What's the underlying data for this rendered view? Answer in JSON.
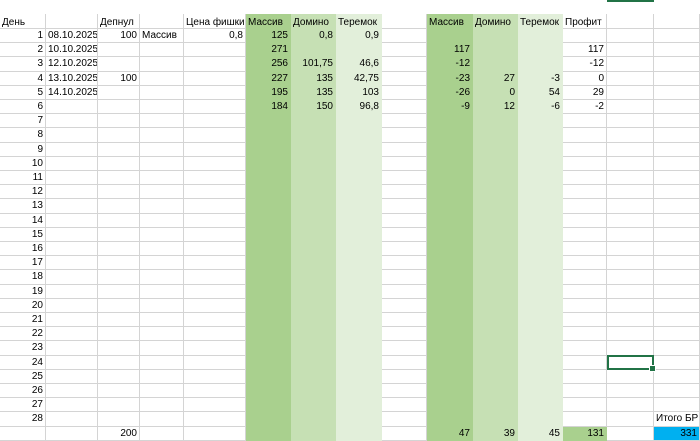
{
  "headers": {
    "den": "День",
    "depnul": "Депнул",
    "cena_fishki": "Цена фишки",
    "massiv": "Массив",
    "domino": "Домино",
    "teremok": "Теремок",
    "massiv2": "Массив",
    "domino2": "Домино",
    "teremok2": "Теремок",
    "profit": "Профит"
  },
  "rows": [
    {
      "n": "1",
      "date": "08.10.2025.",
      "dep": "100",
      "name": "Массив",
      "price": "0,8",
      "m": "125",
      "d": "0,8",
      "t": "0,9",
      "m2": "",
      "d2": "",
      "t2": "",
      "p": ""
    },
    {
      "n": "2",
      "date": "10.10.2025.",
      "dep": "",
      "name": "",
      "price": "",
      "m": "271",
      "d": "",
      "t": "",
      "m2": "117",
      "d2": "",
      "t2": "",
      "p": "117"
    },
    {
      "n": "3",
      "date": "12.10.2025.",
      "dep": "",
      "name": "",
      "price": "",
      "m": "256",
      "d": "101,75",
      "t": "46,6",
      "m2": "-12",
      "d2": "",
      "t2": "",
      "p": "-12"
    },
    {
      "n": "4",
      "date": "13.10.2025.",
      "dep": "100",
      "name": "",
      "price": "",
      "m": "227",
      "d": "135",
      "t": "42,75",
      "m2": "-23",
      "d2": "27",
      "t2": "-3",
      "p": "0"
    },
    {
      "n": "5",
      "date": "14.10.2025.",
      "dep": "",
      "name": "",
      "price": "",
      "m": "195",
      "d": "135",
      "t": "103",
      "m2": "-26",
      "d2": "0",
      "t2": "54",
      "p": "29"
    },
    {
      "n": "6",
      "date": "",
      "dep": "",
      "name": "",
      "price": "",
      "m": "184",
      "d": "150",
      "t": "96,8",
      "m2": "-9",
      "d2": "12",
      "t2": "-6",
      "p": "-2"
    },
    {
      "n": "7"
    },
    {
      "n": "8"
    },
    {
      "n": "9"
    },
    {
      "n": "10"
    },
    {
      "n": "11"
    },
    {
      "n": "12"
    },
    {
      "n": "13"
    },
    {
      "n": "14"
    },
    {
      "n": "15"
    },
    {
      "n": "16"
    },
    {
      "n": "17"
    },
    {
      "n": "18"
    },
    {
      "n": "19"
    },
    {
      "n": "20"
    },
    {
      "n": "21"
    },
    {
      "n": "22"
    },
    {
      "n": "23"
    },
    {
      "n": "24"
    },
    {
      "n": "25"
    },
    {
      "n": "26"
    },
    {
      "n": "27"
    },
    {
      "n": "28",
      "itogo_label": "Итого БР"
    }
  ],
  "totals": {
    "dep": "200",
    "m2": "47",
    "d2": "39",
    "t2": "45",
    "p": "131",
    "itogo": "331"
  },
  "colors": {
    "green_dark": "#a9d08e",
    "green_mid": "#c6e0b4",
    "green_light": "#e2efda",
    "total_blue": "#00b0f0",
    "selection": "#217346",
    "grid": "#d4d4d4"
  }
}
